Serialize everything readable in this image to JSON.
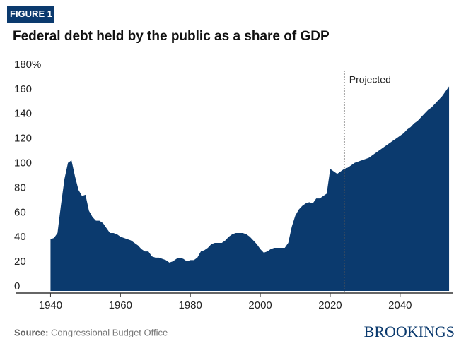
{
  "chart_data": {
    "type": "area",
    "figure_label": "FIGURE 1",
    "title": "Federal debt held by the public as a share of GDP",
    "annotation": "Projected",
    "projection_start": 2024,
    "source_label": "Source:",
    "source": "Congressional Budget Office",
    "brand": "BROOKINGS",
    "color": "#0b3a6e",
    "x": [
      1940,
      1941,
      1942,
      1943,
      1944,
      1945,
      1946,
      1947,
      1948,
      1949,
      1950,
      1951,
      1952,
      1953,
      1954,
      1955,
      1956,
      1957,
      1958,
      1959,
      1960,
      1961,
      1962,
      1963,
      1964,
      1965,
      1966,
      1967,
      1968,
      1969,
      1970,
      1971,
      1972,
      1973,
      1974,
      1975,
      1976,
      1977,
      1978,
      1979,
      1980,
      1981,
      1982,
      1983,
      1984,
      1985,
      1986,
      1987,
      1988,
      1989,
      1990,
      1991,
      1992,
      1993,
      1994,
      1995,
      1996,
      1997,
      1998,
      1999,
      2000,
      2001,
      2002,
      2003,
      2004,
      2005,
      2006,
      2007,
      2008,
      2009,
      2010,
      2011,
      2012,
      2013,
      2014,
      2015,
      2016,
      2017,
      2018,
      2019,
      2020,
      2021,
      2022,
      2023,
      2024,
      2025,
      2026,
      2027,
      2028,
      2029,
      2030,
      2031,
      2032,
      2033,
      2034,
      2035,
      2036,
      2037,
      2038,
      2039,
      2040,
      2041,
      2042,
      2043,
      2044,
      2045,
      2046,
      2047,
      2048,
      2049,
      2050,
      2051,
      2052,
      2053,
      2054
    ],
    "values": [
      42,
      43,
      47,
      70,
      91,
      104,
      106,
      93,
      82,
      77,
      78,
      65,
      60,
      57,
      57,
      55,
      51,
      47,
      47,
      46,
      44,
      43,
      42,
      41,
      39,
      37,
      34,
      32,
      32,
      28,
      27,
      27,
      26,
      25,
      23,
      24,
      26,
      27,
      26,
      24,
      25,
      25,
      27,
      32,
      33,
      35,
      38,
      39,
      39,
      39,
      41,
      44,
      46,
      47,
      47,
      47,
      46,
      44,
      41,
      38,
      34,
      31,
      32,
      34,
      35,
      35,
      35,
      35,
      39,
      52,
      61,
      66,
      69,
      71,
      72,
      71,
      75,
      75,
      77,
      79,
      99,
      97,
      95,
      97,
      99,
      100,
      102,
      104,
      105,
      106,
      107,
      108,
      110,
      112,
      114,
      116,
      118,
      120,
      122,
      124,
      126,
      128,
      131,
      133,
      136,
      138,
      141,
      144,
      147,
      149,
      152,
      155,
      158,
      162,
      166
    ],
    "xlim": [
      1930,
      2055
    ],
    "xticks": [
      1940,
      1960,
      1980,
      2000,
      2020,
      2040
    ],
    "ylim": [
      0,
      180
    ],
    "yticks": [
      0,
      20,
      40,
      60,
      80,
      100,
      120,
      140,
      160,
      {
        "value": 180,
        "label": "180%"
      }
    ],
    "grid": false
  }
}
